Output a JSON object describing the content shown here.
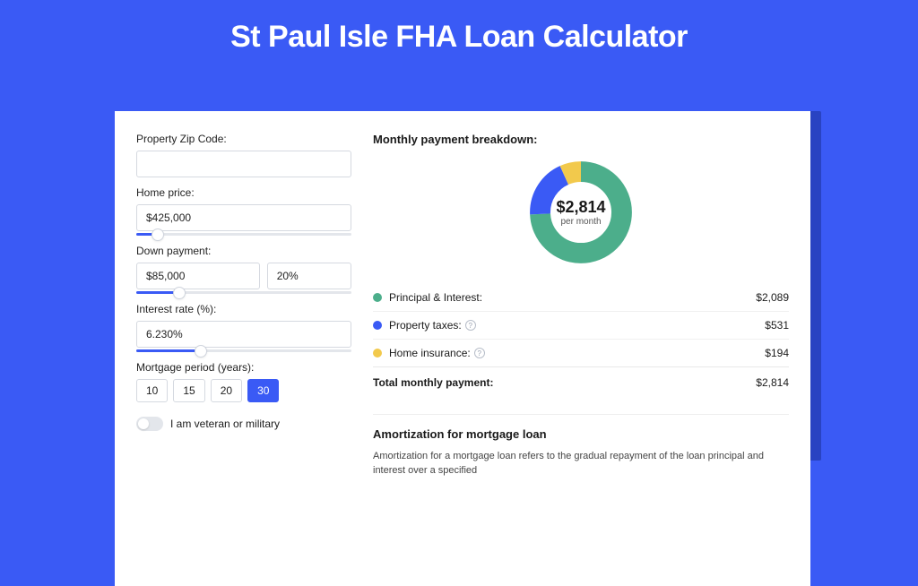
{
  "title": "St Paul Isle FHA Loan Calculator",
  "colors": {
    "page_bg": "#3a5af5",
    "shadow": "#2943c2",
    "accent": "#3a5af5",
    "principal": "#4cae8b",
    "taxes": "#3a5af5",
    "insurance": "#f2c94c"
  },
  "form": {
    "zip": {
      "label": "Property Zip Code:",
      "value": ""
    },
    "home_price": {
      "label": "Home price:",
      "value": "$425,000",
      "slider_pct": 10
    },
    "down_payment": {
      "label": "Down payment:",
      "value": "$85,000",
      "percent": "20%",
      "slider_pct": 20
    },
    "interest_rate": {
      "label": "Interest rate (%):",
      "value": "6.230%",
      "slider_pct": 30
    },
    "mortgage_period": {
      "label": "Mortgage period (years):",
      "options": [
        "10",
        "15",
        "20",
        "30"
      ],
      "selected": "30"
    },
    "veteran": {
      "label": "I am veteran or military",
      "value": false
    }
  },
  "breakdown": {
    "title": "Monthly payment breakdown:",
    "donut": {
      "amount": "$2,814",
      "label": "per month",
      "segments": [
        {
          "color": "#4cae8b",
          "pct": 74.2
        },
        {
          "color": "#3a5af5",
          "pct": 18.9
        },
        {
          "color": "#f2c94c",
          "pct": 6.9
        }
      ]
    },
    "rows": [
      {
        "label": "Principal & Interest:",
        "value": "$2,089",
        "color": "#4cae8b",
        "info": false
      },
      {
        "label": "Property taxes:",
        "value": "$531",
        "color": "#3a5af5",
        "info": true
      },
      {
        "label": "Home insurance:",
        "value": "$194",
        "color": "#f2c94c",
        "info": true
      }
    ],
    "total": {
      "label": "Total monthly payment:",
      "value": "$2,814"
    }
  },
  "amortization": {
    "title": "Amortization for mortgage loan",
    "text": "Amortization for a mortgage loan refers to the gradual repayment of the loan principal and interest over a specified"
  }
}
